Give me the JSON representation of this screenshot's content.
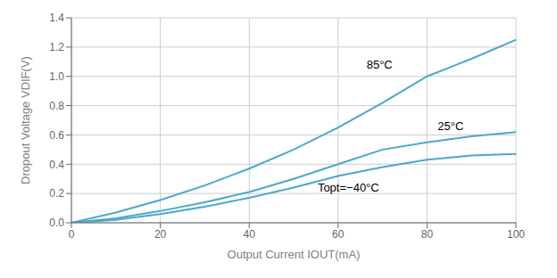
{
  "chart_data": {
    "type": "line",
    "x_label": "Output Current IOUT(mA)",
    "y_label": "Dropout Voltage VDIF(V)",
    "x": [
      0,
      10,
      20,
      30,
      40,
      50,
      60,
      70,
      80,
      90,
      100
    ],
    "series": [
      {
        "color": "#4aa8cc",
        "values": [
          0,
          0.07,
          0.155,
          0.255,
          0.37,
          0.5,
          0.65,
          0.82,
          1.0,
          1.12,
          1.25
        ]
      },
      {
        "color": "#4aa8cc",
        "values": [
          0,
          0.03,
          0.08,
          0.14,
          0.21,
          0.3,
          0.4,
          0.5,
          0.55,
          0.59,
          0.62
        ]
      },
      {
        "color": "#4aa8cc",
        "values": [
          0,
          0.02,
          0.06,
          0.11,
          0.17,
          0.24,
          0.32,
          0.38,
          0.43,
          0.46,
          0.47
        ]
      }
    ],
    "annotations": [
      {
        "text": "85°C",
        "x": 66,
        "y": 1.08
      },
      {
        "text": "25°C",
        "x": 82,
        "y": 0.66
      },
      {
        "text": "Topt=−40°C",
        "x": 55,
        "y": 0.24
      }
    ],
    "xlim": [
      0,
      100
    ],
    "ylim": [
      0,
      1.4
    ],
    "xticks": [
      0,
      20,
      40,
      60,
      80,
      100
    ],
    "yticks": [
      {
        "value": 0,
        "label": "0.0"
      },
      0.2,
      0.4,
      0.6,
      0.8,
      {
        "value": 1,
        "label": "1.0"
      },
      1.2,
      1.4
    ],
    "grid": true
  }
}
